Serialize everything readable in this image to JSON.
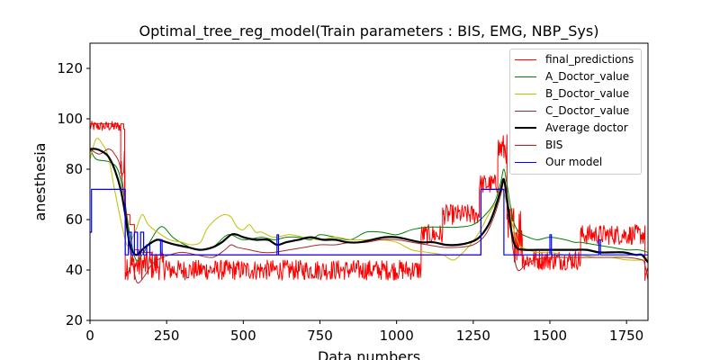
{
  "colors": {
    "final_predictions": "#ff0000",
    "A_Doctor_value": "#008000",
    "B_Doctor_value": "#bfbf00",
    "C_Doctor_value": "#a52a2a",
    "Average_doctor": "#000000",
    "BIS": "#ff0000",
    "Our_model": "#0000ff"
  },
  "chart_data": {
    "type": "line",
    "title": "Optimal_tree_reg_model(Train parameters : BIS, EMG, NBP_Sys)",
    "xlabel": "Data numbers",
    "ylabel": "anesthesia",
    "xlim": [
      0,
      1820
    ],
    "ylim": [
      20,
      130
    ],
    "xticks": [
      0,
      250,
      500,
      750,
      1000,
      1250,
      1500,
      1750
    ],
    "yticks": [
      20,
      40,
      60,
      80,
      100,
      120
    ],
    "grid": false,
    "legend_position": "top-right",
    "series": [
      {
        "name": "final_predictions",
        "color": "#ff0000",
        "width": 1,
        "style": "steps",
        "points": [
          [
            0,
            98
          ],
          [
            20,
            98
          ],
          [
            60,
            98
          ],
          [
            70,
            97
          ],
          [
            80,
            98
          ],
          [
            90,
            97
          ],
          [
            100,
            98
          ],
          [
            110,
            96
          ],
          [
            113,
            62
          ],
          [
            130,
            58
          ],
          [
            145,
            48
          ],
          [
            160,
            47
          ],
          [
            200,
            46
          ],
          [
            400,
            46
          ],
          [
            600,
            46
          ],
          [
            800,
            46
          ],
          [
            1000,
            46
          ],
          [
            1273,
            46
          ],
          [
            1275,
            72
          ],
          [
            1300,
            72
          ],
          [
            1340,
            72
          ]
        ]
      },
      {
        "name": "A_Doctor_value",
        "color": "#008000",
        "width": 1,
        "style": "smooth",
        "points": [
          [
            0,
            88
          ],
          [
            20,
            84
          ],
          [
            60,
            83
          ],
          [
            90,
            80
          ],
          [
            110,
            70
          ],
          [
            130,
            54
          ],
          [
            150,
            44
          ],
          [
            170,
            46
          ],
          [
            190,
            50
          ],
          [
            220,
            56
          ],
          [
            240,
            57
          ],
          [
            270,
            53
          ],
          [
            310,
            50
          ],
          [
            350,
            48
          ],
          [
            400,
            49
          ],
          [
            450,
            54
          ],
          [
            500,
            52
          ],
          [
            560,
            53
          ],
          [
            600,
            52
          ],
          [
            640,
            53
          ],
          [
            680,
            53
          ],
          [
            720,
            52
          ],
          [
            750,
            54
          ],
          [
            800,
            53
          ],
          [
            850,
            52
          ],
          [
            900,
            55
          ],
          [
            950,
            55
          ],
          [
            1000,
            54
          ],
          [
            1050,
            56
          ],
          [
            1100,
            57
          ],
          [
            1150,
            57
          ],
          [
            1200,
            57
          ],
          [
            1250,
            58
          ],
          [
            1290,
            62
          ],
          [
            1320,
            67
          ],
          [
            1340,
            75
          ],
          [
            1350,
            80
          ],
          [
            1360,
            74
          ],
          [
            1380,
            60
          ],
          [
            1400,
            55
          ],
          [
            1430,
            53
          ],
          [
            1460,
            52
          ],
          [
            1500,
            53
          ],
          [
            1550,
            52
          ],
          [
            1580,
            51
          ],
          [
            1600,
            51
          ],
          [
            1650,
            50
          ],
          [
            1700,
            49
          ],
          [
            1750,
            48
          ],
          [
            1790,
            48
          ],
          [
            1820,
            47
          ]
        ]
      },
      {
        "name": "B_Doctor_value",
        "color": "#bfbf00",
        "width": 1,
        "style": "smooth",
        "points": [
          [
            0,
            84
          ],
          [
            20,
            92
          ],
          [
            40,
            90
          ],
          [
            60,
            85
          ],
          [
            80,
            72
          ],
          [
            100,
            60
          ],
          [
            120,
            50
          ],
          [
            135,
            52
          ],
          [
            150,
            56
          ],
          [
            170,
            62
          ],
          [
            190,
            58
          ],
          [
            220,
            55
          ],
          [
            260,
            52
          ],
          [
            300,
            51
          ],
          [
            330,
            50
          ],
          [
            360,
            51
          ],
          [
            380,
            56
          ],
          [
            400,
            59
          ],
          [
            420,
            61
          ],
          [
            440,
            62
          ],
          [
            460,
            61
          ],
          [
            480,
            57
          ],
          [
            500,
            56
          ],
          [
            520,
            58
          ],
          [
            540,
            55
          ],
          [
            560,
            55
          ],
          [
            600,
            53
          ],
          [
            650,
            54
          ],
          [
            700,
            53
          ],
          [
            750,
            52
          ],
          [
            800,
            53
          ],
          [
            850,
            52
          ],
          [
            900,
            52
          ],
          [
            950,
            52
          ],
          [
            1000,
            51
          ],
          [
            1050,
            48
          ],
          [
            1100,
            47
          ],
          [
            1150,
            46
          ],
          [
            1180,
            44
          ],
          [
            1200,
            45
          ],
          [
            1240,
            50
          ],
          [
            1270,
            55
          ],
          [
            1300,
            62
          ],
          [
            1330,
            68
          ],
          [
            1345,
            72
          ],
          [
            1360,
            66
          ],
          [
            1380,
            57
          ],
          [
            1400,
            50
          ],
          [
            1430,
            48
          ],
          [
            1460,
            47
          ],
          [
            1500,
            47
          ],
          [
            1550,
            46
          ],
          [
            1600,
            46
          ],
          [
            1650,
            45
          ],
          [
            1700,
            45
          ],
          [
            1750,
            44
          ],
          [
            1800,
            44
          ],
          [
            1820,
            45
          ]
        ]
      },
      {
        "name": "C_Doctor_value",
        "color": "#a52a2a",
        "width": 1,
        "style": "smooth",
        "points": [
          [
            0,
            88
          ],
          [
            30,
            86
          ],
          [
            60,
            88
          ],
          [
            80,
            86
          ],
          [
            100,
            80
          ],
          [
            120,
            60
          ],
          [
            130,
            48
          ],
          [
            140,
            42
          ],
          [
            150,
            36
          ],
          [
            160,
            35
          ],
          [
            180,
            38
          ],
          [
            200,
            42
          ],
          [
            220,
            44
          ],
          [
            260,
            46
          ],
          [
            300,
            47
          ],
          [
            350,
            46
          ],
          [
            400,
            45
          ],
          [
            440,
            48
          ],
          [
            460,
            50
          ],
          [
            480,
            49
          ],
          [
            520,
            48
          ],
          [
            560,
            47
          ],
          [
            600,
            47
          ],
          [
            650,
            48
          ],
          [
            700,
            49
          ],
          [
            750,
            50
          ],
          [
            800,
            50
          ],
          [
            850,
            51
          ],
          [
            900,
            51
          ],
          [
            950,
            52
          ],
          [
            1000,
            52
          ],
          [
            1050,
            51
          ],
          [
            1100,
            50
          ],
          [
            1150,
            49
          ],
          [
            1200,
            49
          ],
          [
            1250,
            50
          ],
          [
            1290,
            54
          ],
          [
            1320,
            62
          ],
          [
            1340,
            70
          ],
          [
            1350,
            75
          ],
          [
            1360,
            70
          ],
          [
            1370,
            60
          ],
          [
            1380,
            48
          ],
          [
            1395,
            40
          ],
          [
            1420,
            42
          ],
          [
            1450,
            44
          ],
          [
            1500,
            45
          ],
          [
            1550,
            45
          ],
          [
            1600,
            45
          ],
          [
            1650,
            45
          ],
          [
            1700,
            45
          ],
          [
            1750,
            45
          ],
          [
            1800,
            44
          ],
          [
            1810,
            42
          ],
          [
            1820,
            36
          ]
        ]
      },
      {
        "name": "Average doctor",
        "color": "#000000",
        "width": 2.2,
        "style": "smooth",
        "points": [
          [
            0,
            88
          ],
          [
            20,
            88
          ],
          [
            40,
            87
          ],
          [
            60,
            85
          ],
          [
            80,
            80
          ],
          [
            100,
            72
          ],
          [
            115,
            62
          ],
          [
            130,
            50
          ],
          [
            150,
            46
          ],
          [
            170,
            48
          ],
          [
            190,
            50
          ],
          [
            220,
            52
          ],
          [
            250,
            51
          ],
          [
            280,
            50
          ],
          [
            320,
            49
          ],
          [
            360,
            48
          ],
          [
            400,
            49
          ],
          [
            430,
            51
          ],
          [
            460,
            54
          ],
          [
            480,
            54
          ],
          [
            500,
            53
          ],
          [
            540,
            52
          ],
          [
            580,
            52
          ],
          [
            610,
            50
          ],
          [
            640,
            51
          ],
          [
            680,
            52
          ],
          [
            720,
            53
          ],
          [
            760,
            52
          ],
          [
            800,
            52
          ],
          [
            840,
            51
          ],
          [
            880,
            51
          ],
          [
            920,
            52
          ],
          [
            960,
            53
          ],
          [
            1000,
            53
          ],
          [
            1040,
            52
          ],
          [
            1080,
            51
          ],
          [
            1120,
            51
          ],
          [
            1160,
            50
          ],
          [
            1200,
            50
          ],
          [
            1240,
            51
          ],
          [
            1270,
            53
          ],
          [
            1300,
            58
          ],
          [
            1320,
            64
          ],
          [
            1340,
            72
          ],
          [
            1350,
            76
          ],
          [
            1360,
            68
          ],
          [
            1375,
            55
          ],
          [
            1390,
            49
          ],
          [
            1420,
            48
          ],
          [
            1460,
            48
          ],
          [
            1500,
            48
          ],
          [
            1540,
            48
          ],
          [
            1580,
            48
          ],
          [
            1620,
            48
          ],
          [
            1660,
            47
          ],
          [
            1700,
            47
          ],
          [
            1740,
            47
          ],
          [
            1780,
            46
          ],
          [
            1800,
            46
          ],
          [
            1820,
            43
          ]
        ]
      }
    ],
    "bis_series": {
      "name": "BIS",
      "color": "#ff0000",
      "width": 1,
      "style": "noisy",
      "segments": [
        {
          "x0": 0,
          "x1": 100,
          "base": 97,
          "amp": 2
        },
        {
          "x0": 100,
          "x1": 115,
          "base": 80,
          "amp": 8
        },
        {
          "x0": 115,
          "x1": 250,
          "base": 42,
          "amp": 6
        },
        {
          "x0": 250,
          "x1": 1080,
          "base": 40,
          "amp": 4
        },
        {
          "x0": 1080,
          "x1": 1150,
          "base": 54,
          "amp": 4
        },
        {
          "x0": 1150,
          "x1": 1270,
          "base": 62,
          "amp": 4
        },
        {
          "x0": 1270,
          "x1": 1330,
          "base": 74,
          "amp": 4
        },
        {
          "x0": 1330,
          "x1": 1360,
          "base": 88,
          "amp": 6
        },
        {
          "x0": 1360,
          "x1": 1410,
          "base": 55,
          "amp": 12
        },
        {
          "x0": 1410,
          "x1": 1600,
          "base": 44,
          "amp": 4
        },
        {
          "x0": 1600,
          "x1": 1810,
          "base": 54,
          "amp": 4
        },
        {
          "x0": 1810,
          "x1": 1820,
          "base": 38,
          "amp": 3
        }
      ]
    },
    "model_series": {
      "name": "Our model",
      "color": "#0000ff",
      "width": 1.2,
      "style": "steps",
      "points": [
        [
          0,
          55
        ],
        [
          5,
          72
        ],
        [
          10,
          72
        ],
        [
          30,
          72
        ],
        [
          100,
          72
        ],
        [
          115,
          46
        ],
        [
          125,
          55
        ],
        [
          135,
          46
        ],
        [
          145,
          55
        ],
        [
          155,
          46
        ],
        [
          165,
          55
        ],
        [
          175,
          46
        ],
        [
          185,
          50
        ],
        [
          195,
          46
        ],
        [
          230,
          52
        ],
        [
          235,
          46
        ],
        [
          600,
          46
        ],
        [
          610,
          54
        ],
        [
          615,
          46
        ],
        [
          1270,
          46
        ],
        [
          1275,
          72
        ],
        [
          1340,
          72
        ],
        [
          1350,
          46
        ],
        [
          1490,
          46
        ],
        [
          1500,
          54
        ],
        [
          1505,
          46
        ],
        [
          1640,
          46
        ],
        [
          1660,
          52
        ],
        [
          1665,
          46
        ],
        [
          1820,
          46
        ]
      ]
    }
  },
  "legend": {
    "items": [
      {
        "label": "final_predictions"
      },
      {
        "label": "A_Doctor_value"
      },
      {
        "label": "B_Doctor_value"
      },
      {
        "label": "C_Doctor_value"
      },
      {
        "label": "Average doctor"
      },
      {
        "label": "BIS"
      },
      {
        "label": "Our model"
      }
    ]
  }
}
